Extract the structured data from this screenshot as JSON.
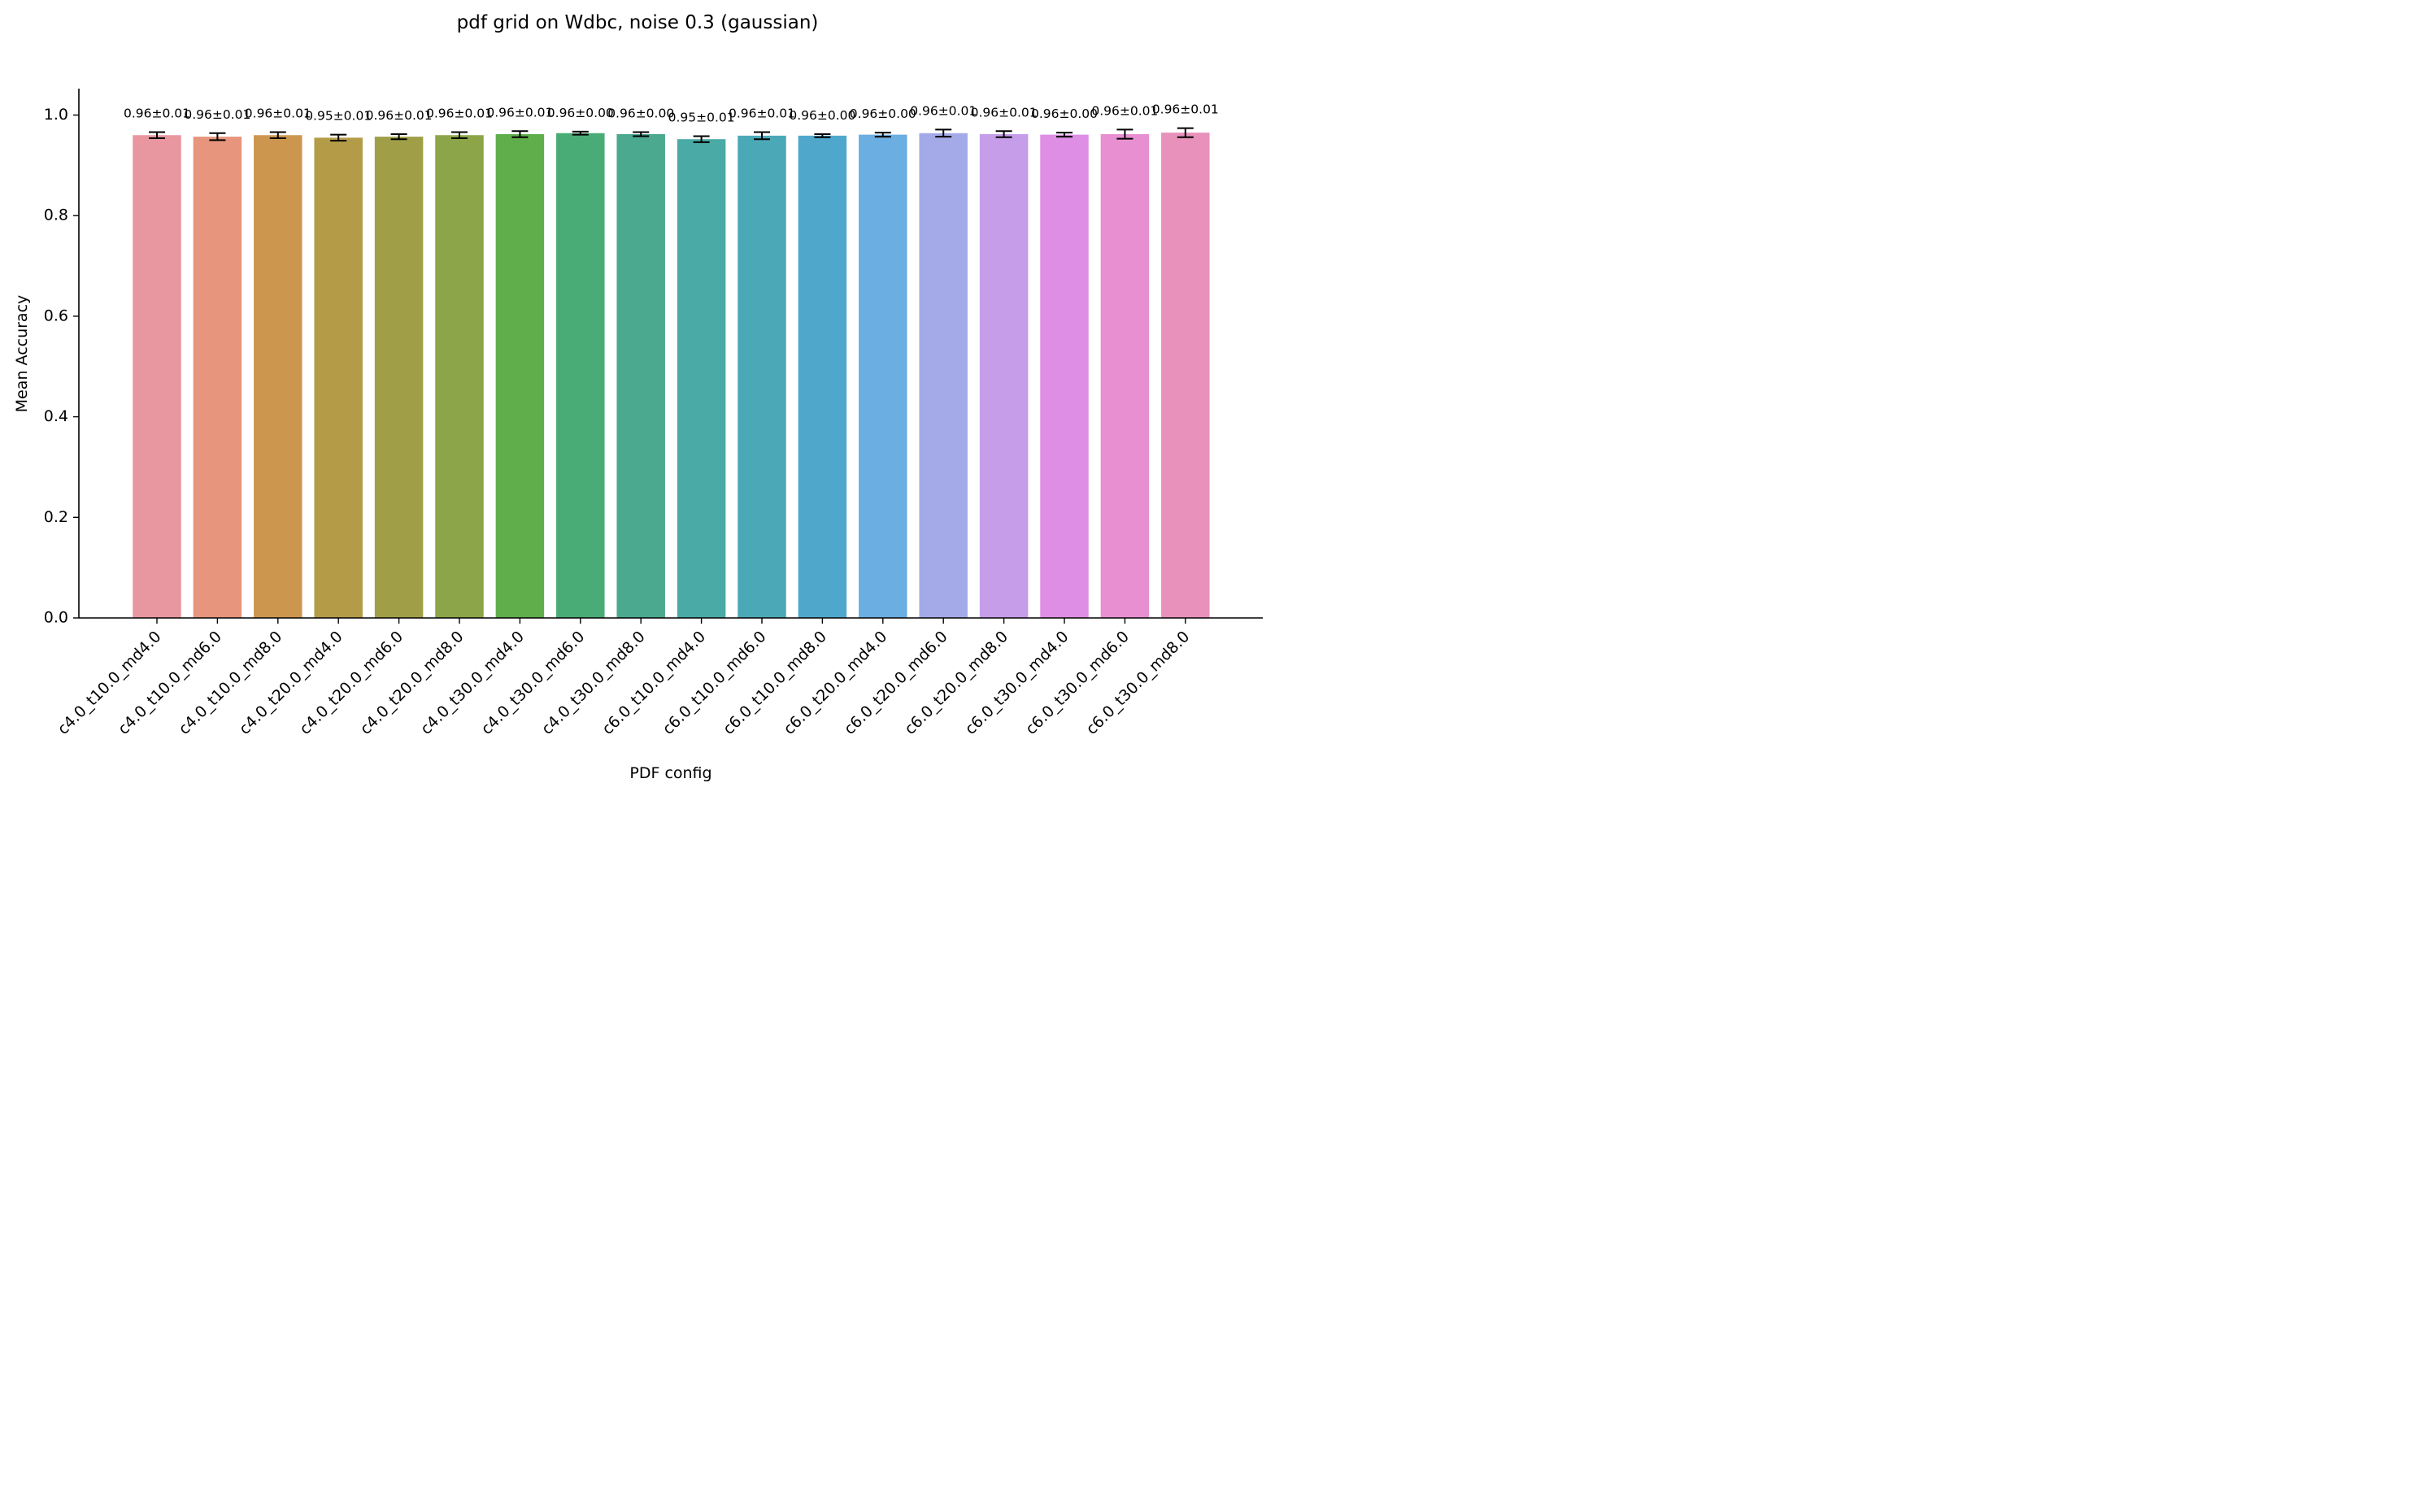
{
  "chart_data": {
    "type": "bar",
    "title": "pdf grid on Wdbc, noise 0.3 (gaussian)",
    "xlabel": "PDF config",
    "ylabel": "Mean Accuracy",
    "ylim": [
      0,
      1.05
    ],
    "yticks": [
      0.0,
      0.2,
      0.4,
      0.6,
      0.8,
      1.0
    ],
    "ytick_labels": [
      "0.0",
      "0.2",
      "0.4",
      "0.6",
      "0.8",
      "1.0"
    ],
    "grid": false,
    "categories": [
      "c4.0_t10.0_md4.0",
      "c4.0_t10.0_md6.0",
      "c4.0_t10.0_md8.0",
      "c4.0_t20.0_md4.0",
      "c4.0_t20.0_md6.0",
      "c4.0_t20.0_md8.0",
      "c4.0_t30.0_md4.0",
      "c4.0_t30.0_md6.0",
      "c4.0_t30.0_md8.0",
      "c6.0_t10.0_md4.0",
      "c6.0_t10.0_md6.0",
      "c6.0_t10.0_md8.0",
      "c6.0_t20.0_md4.0",
      "c6.0_t20.0_md6.0",
      "c6.0_t20.0_md8.0",
      "c6.0_t30.0_md4.0",
      "c6.0_t30.0_md6.0",
      "c6.0_t30.0_md8.0"
    ],
    "values": [
      0.96,
      0.957,
      0.96,
      0.955,
      0.957,
      0.96,
      0.962,
      0.964,
      0.962,
      0.952,
      0.959,
      0.959,
      0.961,
      0.964,
      0.962,
      0.961,
      0.962,
      0.965
    ],
    "errors": [
      0.006,
      0.007,
      0.006,
      0.006,
      0.005,
      0.006,
      0.006,
      0.003,
      0.004,
      0.006,
      0.007,
      0.003,
      0.004,
      0.007,
      0.006,
      0.004,
      0.009,
      0.009
    ],
    "data_labels": [
      "0.96±0.01",
      "0.96±0.01",
      "0.96±0.01",
      "0.95±0.01",
      "0.96±0.01",
      "0.96±0.01",
      "0.96±0.01",
      "0.96±0.00",
      "0.96±0.00",
      "0.95±0.01",
      "0.96±0.01",
      "0.96±0.00",
      "0.96±0.00",
      "0.96±0.01",
      "0.96±0.01",
      "0.96±0.00",
      "0.96±0.01",
      "0.96±0.01"
    ],
    "colors": [
      "#e8969f",
      "#e7957d",
      "#cd964f",
      "#b49b48",
      "#a09f48",
      "#8ca548",
      "#60ad4c",
      "#49ab76",
      "#4aa98f",
      "#4aaaa5",
      "#4ba9b7",
      "#4fa8cc",
      "#6baee1",
      "#a4aae8",
      "#c59de8",
      "#de8ee4",
      "#e88fd2",
      "#e891ba"
    ]
  }
}
